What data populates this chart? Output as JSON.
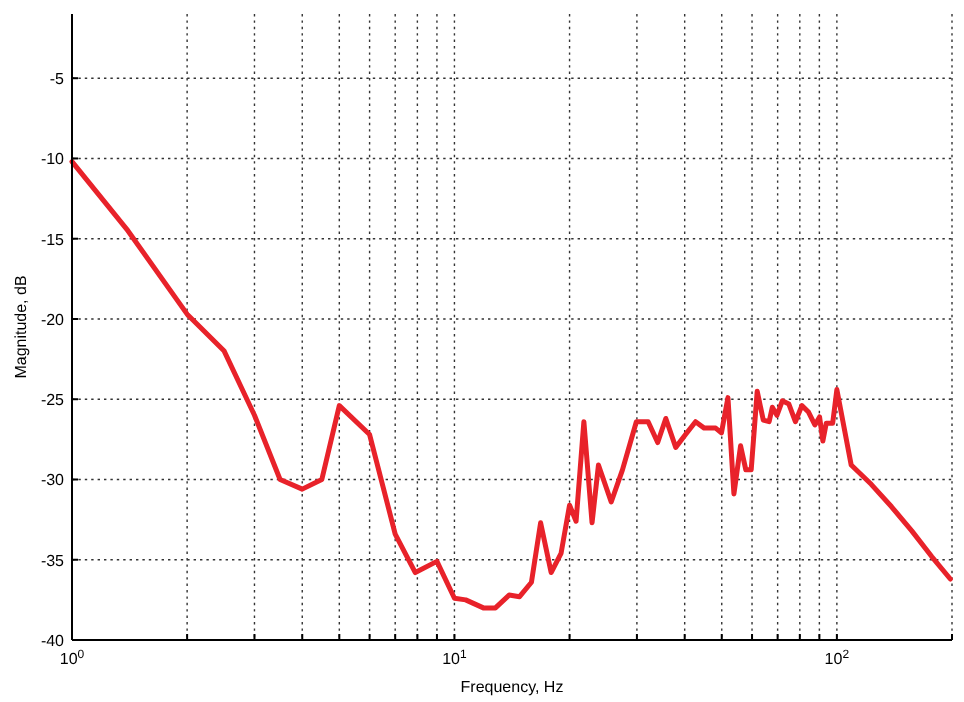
{
  "chart_data": {
    "type": "line",
    "xlabel": "Frequency, Hz",
    "ylabel": "Magnitude, dB",
    "log": "x",
    "grid": true,
    "line_style": "solid",
    "marker": "none",
    "xlim": [
      1,
      200
    ],
    "ylim": [
      -40,
      -1
    ],
    "xticks": [
      {
        "value": 1,
        "label": "10$^{0}$"
      },
      {
        "value": 2,
        "label": null
      },
      {
        "value": 3,
        "label": null
      },
      {
        "value": 4,
        "label": null
      },
      {
        "value": 5,
        "label": null
      },
      {
        "value": 6,
        "label": null
      },
      {
        "value": 7,
        "label": null
      },
      {
        "value": 8,
        "label": null
      },
      {
        "value": 9,
        "label": null
      },
      {
        "value": 10,
        "label": "10$^{1}$"
      },
      {
        "value": 20,
        "label": null
      },
      {
        "value": 30,
        "label": null
      },
      {
        "value": 40,
        "label": null
      },
      {
        "value": 50,
        "label": null
      },
      {
        "value": 60,
        "label": null
      },
      {
        "value": 70,
        "label": null
      },
      {
        "value": 80,
        "label": null
      },
      {
        "value": 90,
        "label": null
      },
      {
        "value": 100,
        "label": "10$^{2}$"
      },
      {
        "value": 200,
        "label": null
      }
    ],
    "yticks": [
      -40,
      -35,
      -30,
      -25,
      -20,
      -15,
      -10,
      -5
    ],
    "x": [
      1,
      1.4,
      2,
      2.5,
      3,
      3.5,
      4,
      4.5,
      5,
      6,
      7,
      7.9,
      9,
      10,
      10.7,
      11.9,
      12.8,
      13.9,
      14.8,
      15.9,
      16.8,
      17.9,
      19,
      20,
      20.8,
      21.8,
      22.9,
      23.8,
      25.7,
      27.5,
      29.9,
      32.1,
      34,
      35.7,
      37.9,
      40.2,
      42.7,
      45,
      48.2,
      49.9,
      51.9,
      53.8,
      56,
      57.8,
      59.7,
      61.9,
      64.2,
      66.5,
      67.8,
      69.7,
      72,
      74.9,
      77.9,
      81,
      84.3,
      87.6,
      90.1,
      91.9,
      93.8,
      97.5,
      100,
      109,
      123,
      139,
      157,
      177,
      198
    ],
    "series": [
      {
        "color": "#e8222a",
        "values": [
          -10.2,
          -14.5,
          -19.7,
          -22,
          -26,
          -30,
          -30.6,
          -30,
          -25.4,
          -27.2,
          -33.4,
          -35.8,
          -35.1,
          -37.4,
          -37.5,
          -38,
          -38,
          -37.2,
          -37.3,
          -36.4,
          -32.7,
          -35.8,
          -34.6,
          -31.6,
          -32.6,
          -26.4,
          -32.7,
          -29.1,
          -31.4,
          -29.4,
          -26.4,
          -26.4,
          -27.7,
          -26.2,
          -28,
          -27.2,
          -26.4,
          -26.8,
          -26.8,
          -27.1,
          -24.9,
          -30.9,
          -27.9,
          -29.4,
          -29.4,
          -24.5,
          -26.3,
          -26.4,
          -25.5,
          -26,
          -25.1,
          -25.3,
          -26.4,
          -25.4,
          -25.8,
          -26.6,
          -26.1,
          -27.6,
          -26.5,
          -26.5,
          -24.4,
          -29.1,
          -30.3,
          -31.7,
          -33.2,
          -34.8,
          -36.2
        ]
      }
    ]
  }
}
